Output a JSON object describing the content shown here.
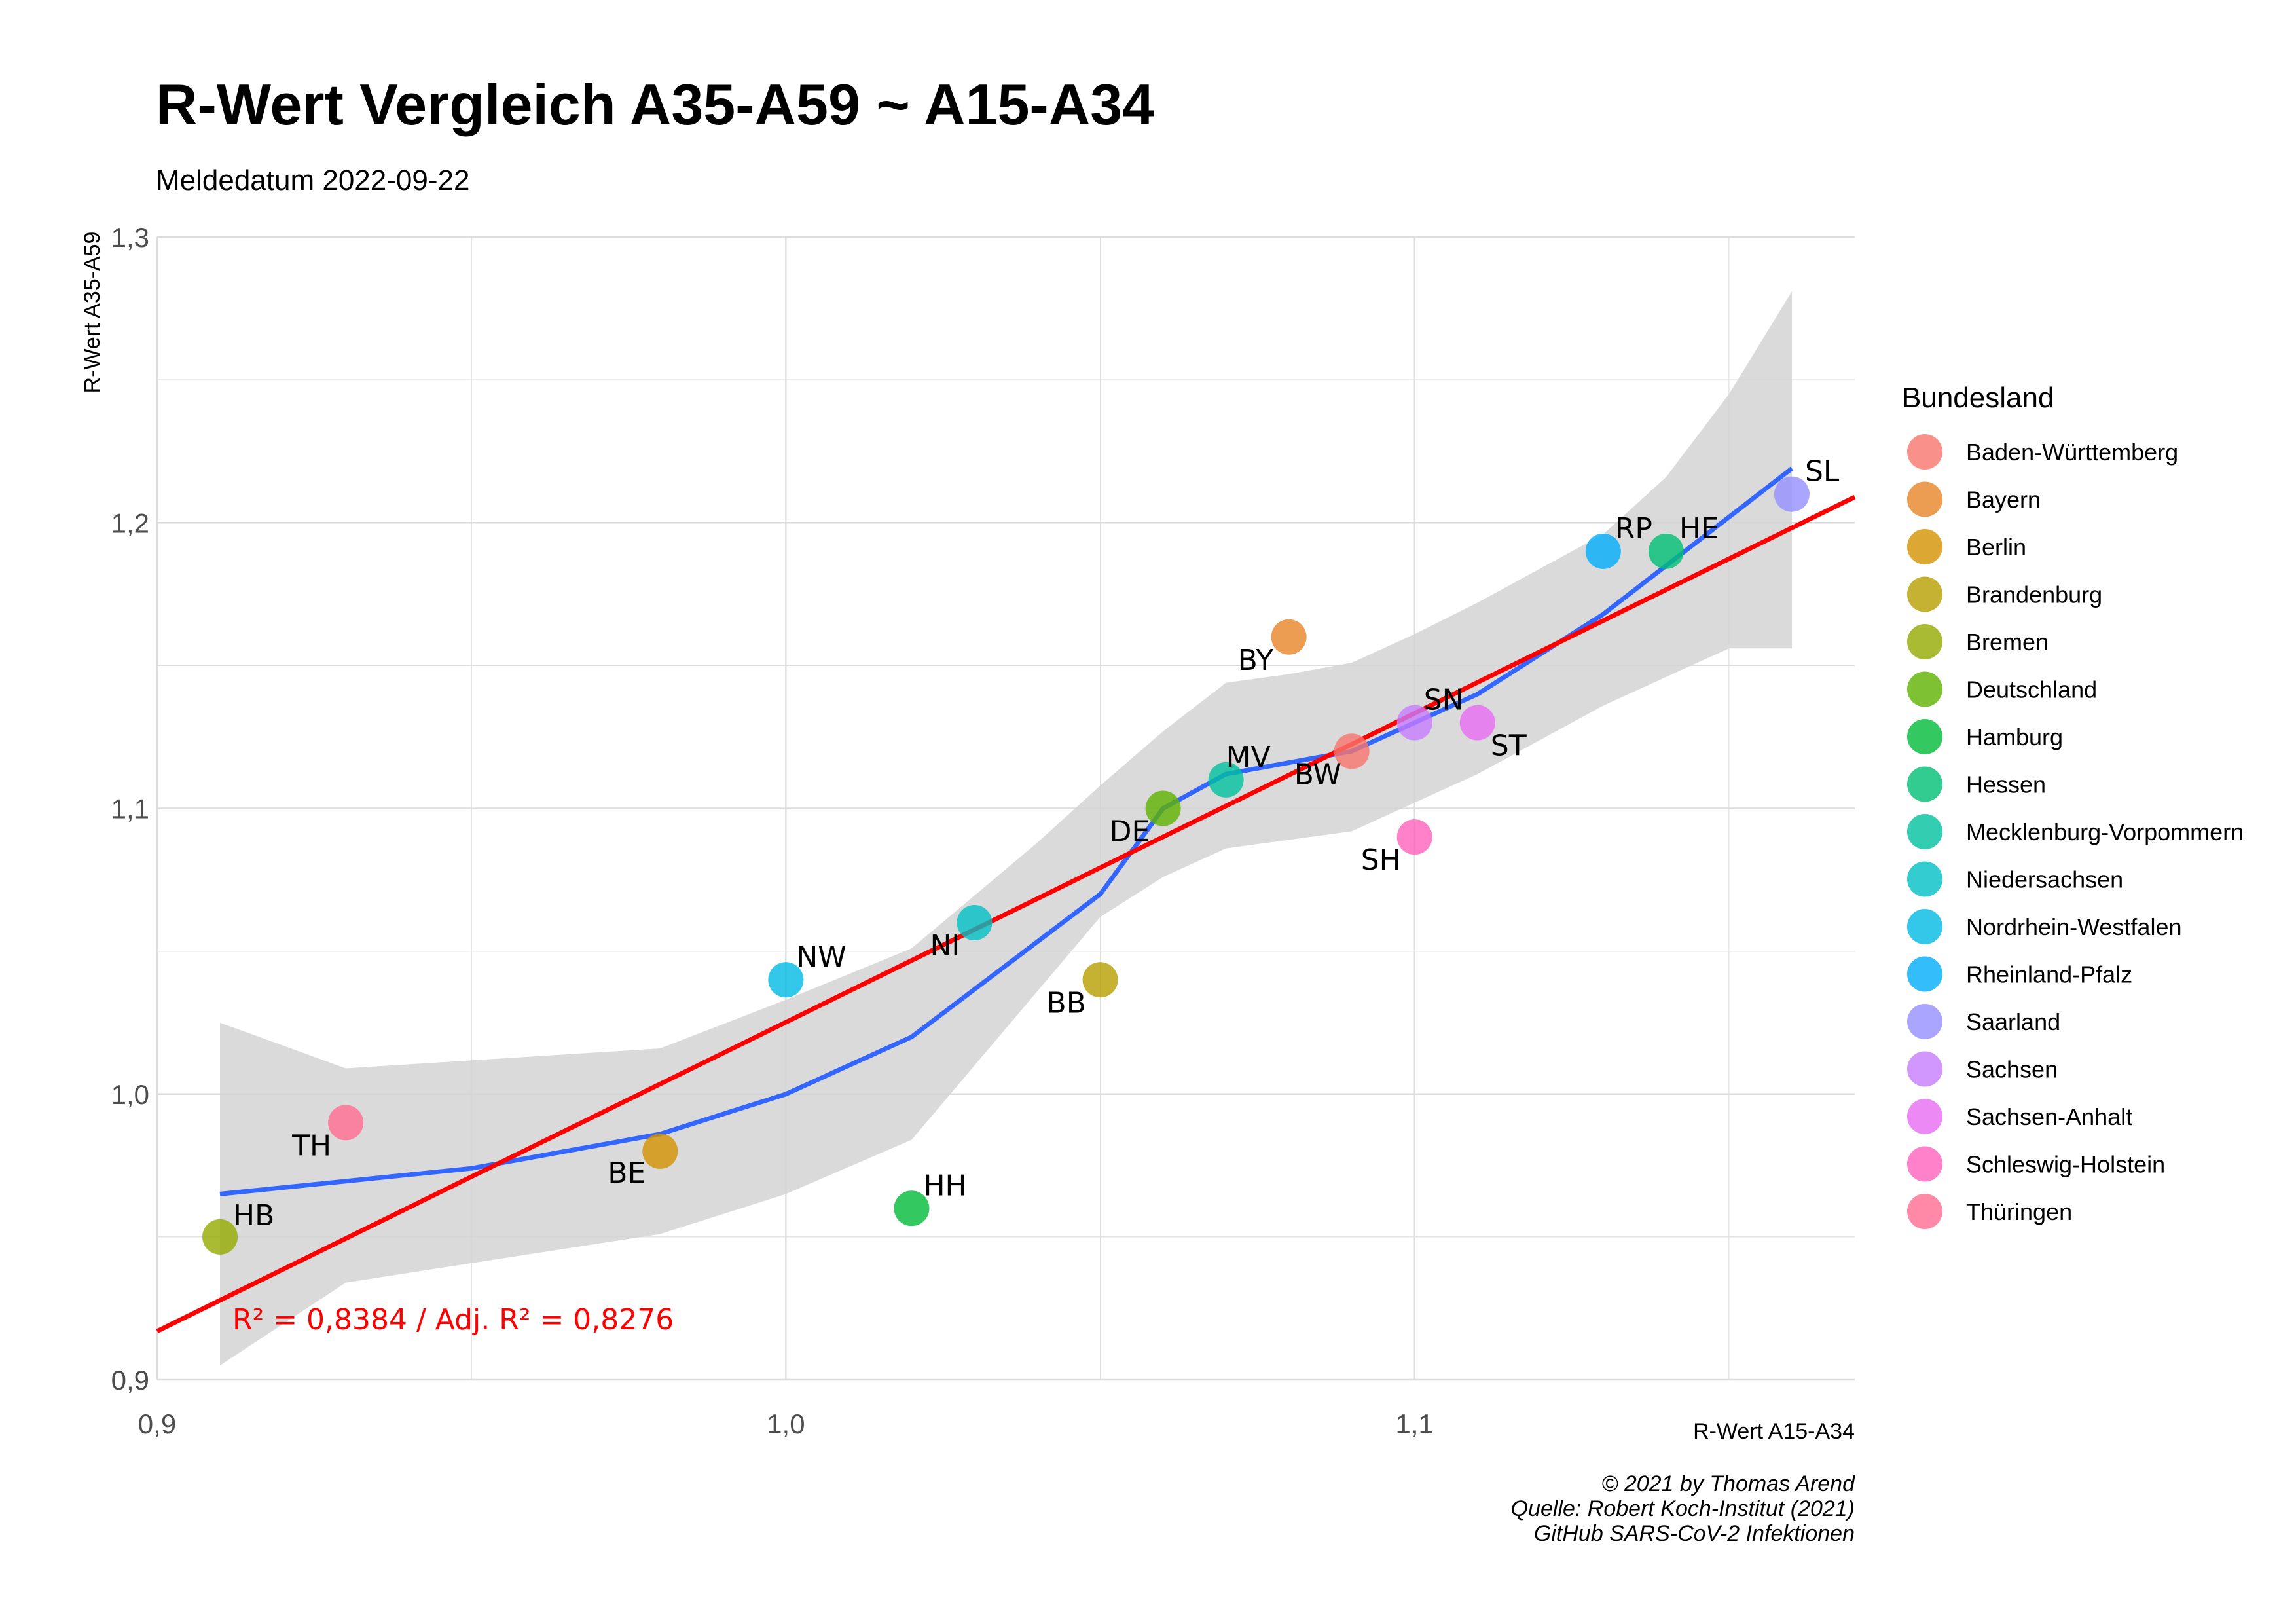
{
  "chart_data": {
    "type": "scatter",
    "title": "R-Wert Vergleich A35-A59 ~ A15-A34",
    "subtitle": "Meldedatum 2022-09-22",
    "xlabel": "R-Wert A15-A34",
    "ylabel": "R-Wert A35-A59",
    "xlim": [
      0.9,
      1.17
    ],
    "ylim": [
      0.9,
      1.3
    ],
    "x_ticks": [
      0.9,
      1.0,
      1.1
    ],
    "x_tick_labels": [
      "0,9",
      "1,0",
      "1,1"
    ],
    "y_ticks": [
      0.9,
      1.0,
      1.1,
      1.2,
      1.3
    ],
    "y_tick_labels": [
      "0,9",
      "1,0",
      "1,1",
      "1,2",
      "1,3"
    ],
    "grid": true,
    "legend_title": "Bundesland",
    "legend_position": "right",
    "series": [
      {
        "name": "Baden-Württemberg",
        "label": "BW",
        "x": 1.09,
        "y": 1.12,
        "color": "#F8766D"
      },
      {
        "name": "Bayern",
        "label": "BY",
        "x": 1.08,
        "y": 1.16,
        "color": "#E88526"
      },
      {
        "name": "Berlin",
        "label": "BE",
        "x": 0.98,
        "y": 0.98,
        "color": "#D39200"
      },
      {
        "name": "Brandenburg",
        "label": "BB",
        "x": 1.05,
        "y": 1.04,
        "color": "#B79F00"
      },
      {
        "name": "Bremen",
        "label": "HB",
        "x": 0.91,
        "y": 0.95,
        "color": "#93AA00"
      },
      {
        "name": "Deutschland",
        "label": "DE",
        "x": 1.06,
        "y": 1.1,
        "color": "#5EB300"
      },
      {
        "name": "Hamburg",
        "label": "HH",
        "x": 1.02,
        "y": 0.96,
        "color": "#00BA38"
      },
      {
        "name": "Hessen",
        "label": "HE",
        "x": 1.14,
        "y": 1.19,
        "color": "#00BF74"
      },
      {
        "name": "Mecklenburg-Vorpommern",
        "label": "MV",
        "x": 1.07,
        "y": 1.11,
        "color": "#00C19F"
      },
      {
        "name": "Niedersachsen",
        "label": "NI",
        "x": 1.03,
        "y": 1.06,
        "color": "#00BFC4"
      },
      {
        "name": "Nordrhein-Westfalen",
        "label": "NW",
        "x": 1.0,
        "y": 1.04,
        "color": "#00B9E3"
      },
      {
        "name": "Rheinland-Pfalz",
        "label": "RP",
        "x": 1.13,
        "y": 1.19,
        "color": "#00ADFA"
      },
      {
        "name": "Saarland",
        "label": "SL",
        "x": 1.16,
        "y": 1.21,
        "color": "#9590FF"
      },
      {
        "name": "Sachsen",
        "label": "SN",
        "x": 1.1,
        "y": 1.13,
        "color": "#C77CFF"
      },
      {
        "name": "Sachsen-Anhalt",
        "label": "ST",
        "x": 1.11,
        "y": 1.13,
        "color": "#E76BF3"
      },
      {
        "name": "Schleswig-Holstein",
        "label": "SH",
        "x": 1.1,
        "y": 1.09,
        "color": "#FF62BC"
      },
      {
        "name": "Thüringen",
        "label": "TH",
        "x": 0.93,
        "y": 0.99,
        "color": "#FF6C91"
      }
    ],
    "regression_line": {
      "color": "#FF0000",
      "x": [
        0.9,
        1.17
      ],
      "y": [
        0.917,
        1.209
      ]
    },
    "loess_line": {
      "color": "#3366FF",
      "x": [
        0.91,
        0.95,
        0.98,
        1.0,
        1.02,
        1.05,
        1.06,
        1.07,
        1.09,
        1.1,
        1.11,
        1.13,
        1.16
      ],
      "y": [
        0.965,
        0.974,
        0.986,
        1.0,
        1.02,
        1.07,
        1.1,
        1.112,
        1.12,
        1.13,
        1.14,
        1.168,
        1.219
      ]
    },
    "confidence_band": {
      "color": "#D3D3D3",
      "x": [
        0.91,
        0.93,
        0.98,
        1.0,
        1.02,
        1.04,
        1.05,
        1.06,
        1.07,
        1.08,
        1.09,
        1.1,
        1.11,
        1.13,
        1.14,
        1.15,
        1.16
      ],
      "upper": [
        1.025,
        1.009,
        1.016,
        1.033,
        1.051,
        1.088,
        1.108,
        1.127,
        1.144,
        1.147,
        1.151,
        1.161,
        1.172,
        1.196,
        1.216,
        1.245,
        1.281
      ],
      "lower": [
        0.905,
        0.934,
        0.951,
        0.965,
        0.984,
        1.036,
        1.062,
        1.076,
        1.086,
        1.089,
        1.092,
        1.102,
        1.112,
        1.136,
        1.146,
        1.156,
        1.156
      ]
    },
    "annotation": {
      "text": "R² = 0,8384 / Adj. R² =  0,8276",
      "color": "#FF0000"
    }
  },
  "caption": {
    "line1": "© 2021 by Thomas Arend",
    "line2": "Quelle: Robert Koch-Institut (2021)",
    "line3": "GitHub SARS-CoV-2 Infektionen"
  }
}
